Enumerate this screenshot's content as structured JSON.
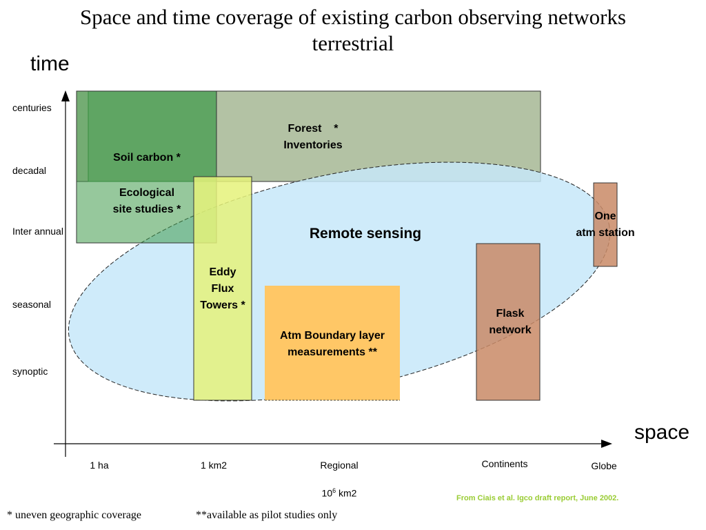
{
  "title": {
    "line1": "Space and time coverage of existing carbon observing  networks",
    "line2": "terrestrial"
  },
  "axes": {
    "y_title": "time",
    "x_title": "space",
    "y_ticks": [
      "centuries",
      "decadal",
      "Inter annual",
      "seasonal",
      "synoptic"
    ],
    "x_ticks": [
      "1 ha",
      "1 km2",
      "Regional",
      "Continents",
      "Globe"
    ],
    "x_sub_tick": {
      "base": "10",
      "exp": "6",
      "unit": " km2"
    }
  },
  "regions": {
    "forest": {
      "label1": "Forest    *",
      "label2": "Inventories",
      "color": "#9aad85"
    },
    "soil": {
      "label": "Soil carbon *",
      "color": "#5ea566"
    },
    "ecological": {
      "label1": "Ecological",
      "label2": "site studies *",
      "color": "#3f9a4a"
    },
    "remote": {
      "label": "Remote sensing",
      "color": "#c7e8f9"
    },
    "eddy": {
      "label1": "Eddy",
      "label2": "Flux",
      "label3": "Towers *",
      "color": "#e5f27a"
    },
    "atm_boundary": {
      "label1": "Atm Boundary layer",
      "label2": "measurements **",
      "color": "#ffc766"
    },
    "flask": {
      "label1": "Flask",
      "label2": "network",
      "color": "#c98a66"
    },
    "one_station": {
      "label1": "One",
      "label2": "atm station",
      "color": "#c98a66"
    }
  },
  "footnotes": {
    "uneven": "* uneven geographic coverage",
    "pilot": "**available as pilot studies only"
  },
  "credit": "From Ciais et al. Igco draft report, June 2002."
}
